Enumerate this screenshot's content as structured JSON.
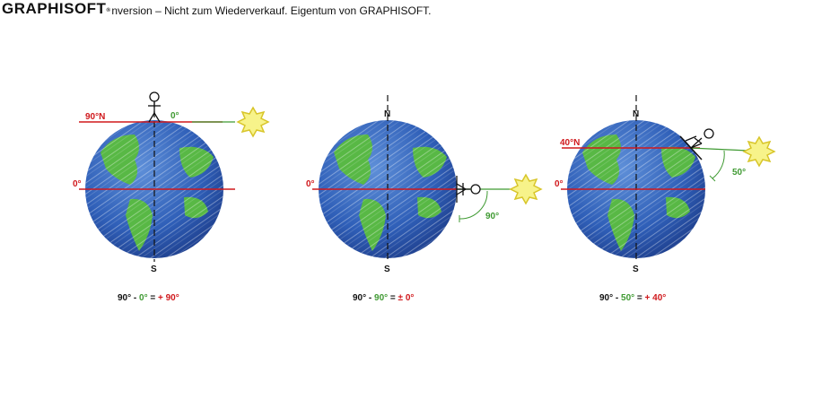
{
  "watermark": {
    "logo": "GRAPHISOFT",
    "text": "nversion – Nicht zum Wiederverkauf. Eigentum von GRAPHISOFT."
  },
  "colors": {
    "red": "#d0181c",
    "green": "#3f9a32",
    "black": "#111111",
    "ocean": "#2f5fb8",
    "land": "#58b845",
    "sun": "#f1ea3a"
  },
  "panels": [
    {
      "north_label": "",
      "south_label": "S",
      "latitude_label": "90°N",
      "equator_label": "0°",
      "sun_angle_label": "0°",
      "equation": {
        "a": "90°",
        "op1": " - ",
        "b": "0°",
        "op2": " = ",
        "c": "+ 90°"
      }
    },
    {
      "north_label": "N",
      "south_label": "S",
      "latitude_label": "",
      "equator_label": "0°",
      "sun_angle_label": "90°",
      "equation": {
        "a": "90°",
        "op1": " - ",
        "b": "90°",
        "op2": " = ",
        "c": "± 0°"
      }
    },
    {
      "north_label": "N",
      "south_label": "S",
      "latitude_label": "40°N",
      "equator_label": "0°",
      "sun_angle_label": "50°",
      "equation": {
        "a": "90°",
        "op1": " - ",
        "b": "50°",
        "op2": " = ",
        "c": "+ 40°"
      }
    }
  ]
}
